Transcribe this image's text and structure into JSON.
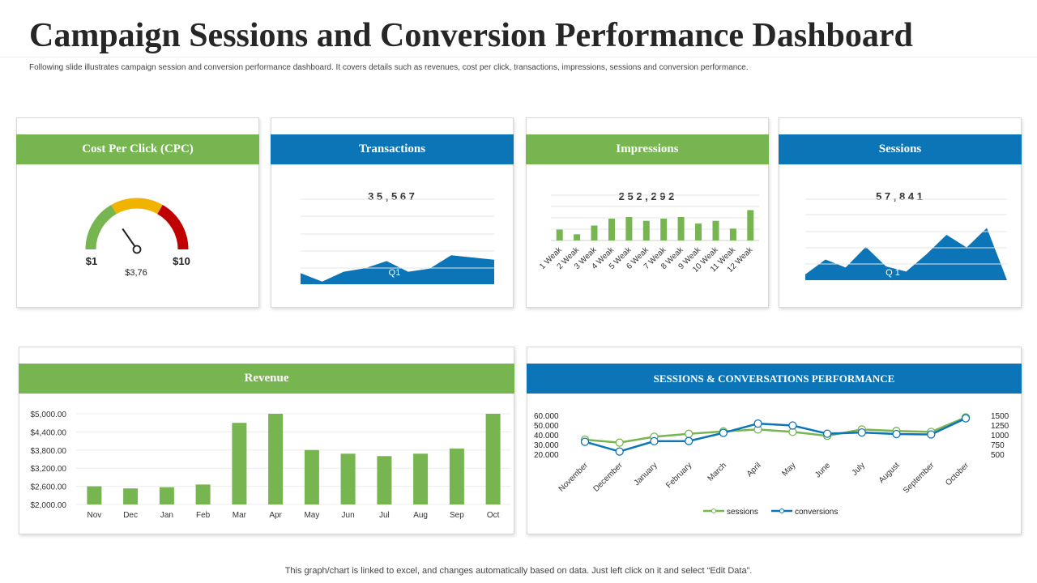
{
  "page": {
    "title": "Campaign Sessions and Conversion Performance Dashboard",
    "subtitle": "Following slide illustrates campaign  session and conversion performance dashboard. It covers details such as revenues, cost per click, transactions, impressions, sessions and conversion performance.",
    "footer": "This graph/chart is linked to excel,  and changes automatically based on data. Just left click on it and select “Edit Data”."
  },
  "colors": {
    "green": "#77b550",
    "blue": "#0b75b7",
    "yellow": "#f0b400",
    "red": "#c00000"
  },
  "cards": {
    "cpc": {
      "header": "Cost Per Click (CPC)",
      "min_label": "$1",
      "max_label": "$10",
      "value_label": "$3,76",
      "value": 3.76,
      "min": 1,
      "max": 10
    },
    "transactions": {
      "header": "Transactions",
      "total": "3 5 , 5 6 7",
      "area_label": "Q1"
    },
    "impressions": {
      "header": "Impressions",
      "total": "2 5 2 , 2 9 2"
    },
    "sessions": {
      "header": "Sessions",
      "total": "5 7 , 8 4 1",
      "area_label": "Q 1"
    },
    "revenue": {
      "header": "Revenue"
    },
    "performance": {
      "header": "SESSIONS & CONVERSATIONS  PERFORMANCE"
    }
  },
  "chart_data": [
    {
      "type": "area",
      "title": "Transactions",
      "x": [
        1,
        2,
        3,
        4,
        5,
        6,
        7,
        8,
        9,
        10
      ],
      "values": [
        25,
        6,
        28,
        36,
        52,
        28,
        35,
        65,
        60,
        55
      ],
      "ylim": [
        0,
        100
      ]
    },
    {
      "type": "bar",
      "title": "Impressions",
      "categories": [
        "1 Weak",
        "2 Weak",
        "3 Weak",
        "4 Weak",
        "5 Weak",
        "6 Weak",
        "7 Weak",
        "8 Weak",
        "9 Weak",
        "10 Weak",
        "11 Weak",
        "12 Weak"
      ],
      "values": [
        35,
        20,
        48,
        70,
        75,
        63,
        70,
        75,
        54,
        63,
        38,
        97
      ],
      "ylim": [
        0,
        145
      ]
    },
    {
      "type": "area",
      "title": "Sessions",
      "x": [
        1,
        2,
        3,
        4,
        5,
        6,
        7,
        8,
        9,
        10,
        11
      ],
      "values": [
        10,
        36,
        22,
        58,
        24,
        15,
        45,
        79,
        57,
        91,
        0
      ],
      "ylim": [
        0,
        120
      ]
    },
    {
      "type": "bar",
      "title": "Revenue",
      "categories": [
        "Nov",
        "Dec",
        "Jan",
        "Feb",
        "Mar",
        "Apr",
        "May",
        "Jun",
        "Jul",
        "Aug",
        "Sep",
        "Oct"
      ],
      "values": [
        2600,
        2530,
        2570,
        2660,
        4700,
        5000,
        3800,
        3680,
        3600,
        3680,
        3850,
        5000
      ],
      "ylim": [
        2000,
        5000
      ],
      "yticks": [
        "$5,000.00",
        "$4,400.00",
        "$3,800.00",
        "$3,200.00",
        "$2,600.00",
        "$2,000.00"
      ],
      "ytick_values": [
        5000,
        4400,
        3800,
        3200,
        2600,
        2000
      ]
    },
    {
      "type": "line",
      "title": "SESSIONS & CONVERSATIONS  PERFORMANCE",
      "categories": [
        "November",
        "December",
        "January",
        "February",
        "March",
        "April",
        "May",
        "June",
        "July",
        "August",
        "September",
        "October"
      ],
      "series": [
        {
          "name": "sessions",
          "axis": "left",
          "values": [
            35000,
            32000,
            38000,
            41000,
            43500,
            45500,
            43000,
            39000,
            45500,
            44000,
            43000,
            58000
          ]
        },
        {
          "name": "conversions",
          "axis": "right",
          "values": [
            820,
            570,
            835,
            840,
            1050,
            1290,
            1240,
            1030,
            1060,
            1020,
            1010,
            1425
          ]
        }
      ],
      "ylim_left": [
        20000,
        60000
      ],
      "ylim_right": [
        500,
        1500
      ],
      "yticks_left": [
        "60.000",
        "50.000",
        "40.000",
        "30.000",
        "20.000"
      ],
      "yticks_left_values": [
        60000,
        50000,
        40000,
        30000,
        20000
      ],
      "yticks_right": [
        "1500",
        "1250",
        "1000",
        "750",
        "500"
      ],
      "yticks_right_values": [
        1500,
        1250,
        1000,
        750,
        500
      ]
    }
  ]
}
